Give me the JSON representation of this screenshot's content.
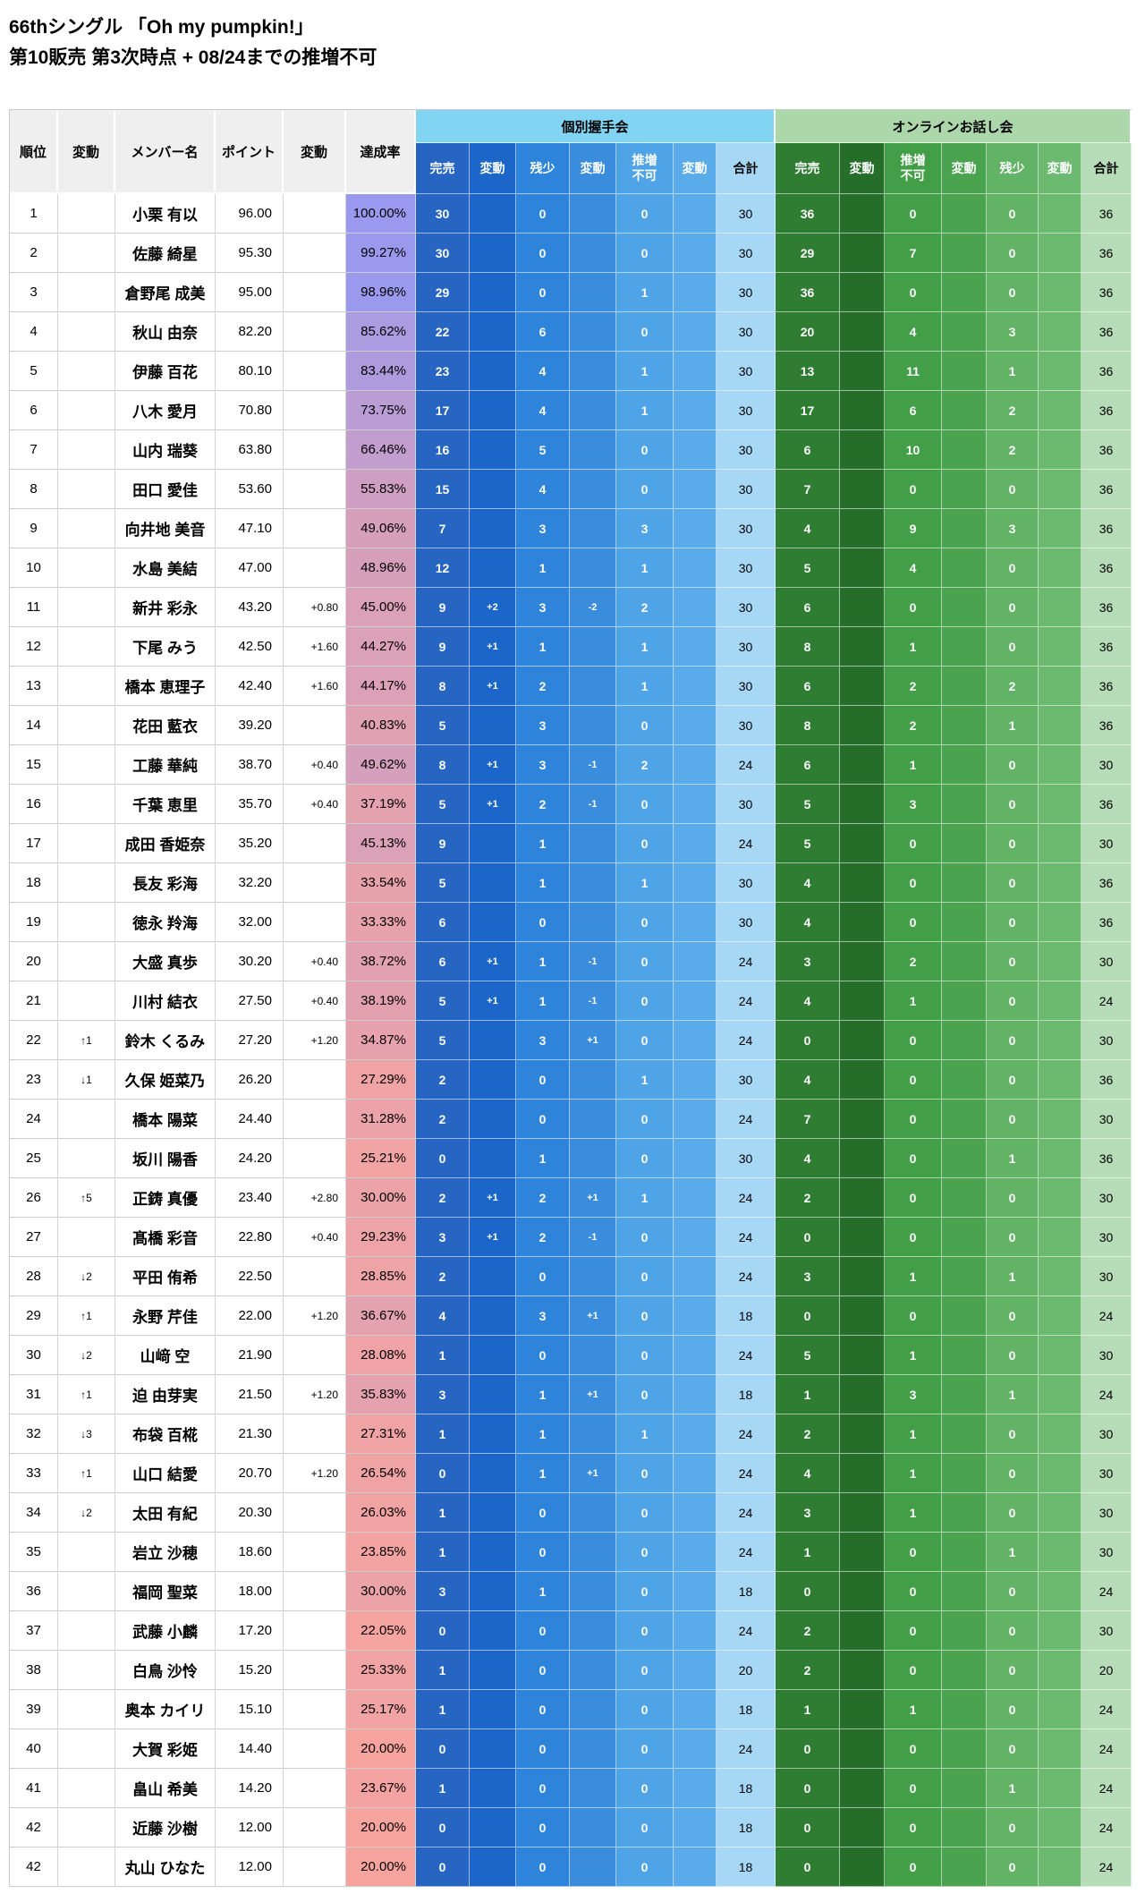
{
  "title": {
    "line1": "66thシングル 「Oh my pumpkin!」",
    "line2": "第10販売 第3次時点 + 08/24までの推増不可"
  },
  "colors": {
    "handshake_group_header": "#82d4f3",
    "online_group_header": "#acd7ab",
    "rate_scale_low_value": 20,
    "rate_scale_low_color": "#f8a49e",
    "rate_scale_high_value": 100,
    "rate_scale_high_color": "#9a99ef"
  },
  "table": {
    "left_headers": [
      "順位",
      "変動",
      "メンバー名",
      "ポイント",
      "変動",
      "達成率"
    ],
    "groups": [
      {
        "label": "個別握手会",
        "columns": [
          "完売",
          "変動",
          "残少",
          "変動",
          "推増\n不可",
          "変動",
          "合計"
        ]
      },
      {
        "label": "オンラインお話し会",
        "columns": [
          "完売",
          "変動",
          "推増\n不可",
          "変動",
          "残少",
          "変動",
          "合計"
        ]
      }
    ],
    "rows": [
      {
        "rank": "1",
        "move": "",
        "name": "小栗 有以",
        "points": "96.00",
        "pt_change": "",
        "rate": "100.00%",
        "hs": [
          "30",
          "",
          "0",
          "",
          "0",
          "",
          "30"
        ],
        "online": [
          "36",
          "",
          "0",
          "",
          "0",
          "",
          "36"
        ]
      },
      {
        "rank": "2",
        "move": "",
        "name": "佐藤 綺星",
        "points": "95.30",
        "pt_change": "",
        "rate": "99.27%",
        "hs": [
          "30",
          "",
          "0",
          "",
          "0",
          "",
          "30"
        ],
        "online": [
          "29",
          "",
          "7",
          "",
          "0",
          "",
          "36"
        ]
      },
      {
        "rank": "3",
        "move": "",
        "name": "倉野尾 成美",
        "points": "95.00",
        "pt_change": "",
        "rate": "98.96%",
        "hs": [
          "29",
          "",
          "0",
          "",
          "1",
          "",
          "30"
        ],
        "online": [
          "36",
          "",
          "0",
          "",
          "0",
          "",
          "36"
        ]
      },
      {
        "rank": "4",
        "move": "",
        "name": "秋山 由奈",
        "points": "82.20",
        "pt_change": "",
        "rate": "85.62%",
        "hs": [
          "22",
          "",
          "6",
          "",
          "0",
          "",
          "30"
        ],
        "online": [
          "20",
          "",
          "4",
          "",
          "3",
          "",
          "36"
        ]
      },
      {
        "rank": "5",
        "move": "",
        "name": "伊藤 百花",
        "points": "80.10",
        "pt_change": "",
        "rate": "83.44%",
        "hs": [
          "23",
          "",
          "4",
          "",
          "1",
          "",
          "30"
        ],
        "online": [
          "13",
          "",
          "11",
          "",
          "1",
          "",
          "36"
        ]
      },
      {
        "rank": "6",
        "move": "",
        "name": "八木 愛月",
        "points": "70.80",
        "pt_change": "",
        "rate": "73.75%",
        "hs": [
          "17",
          "",
          "4",
          "",
          "1",
          "",
          "30"
        ],
        "online": [
          "17",
          "",
          "6",
          "",
          "2",
          "",
          "36"
        ]
      },
      {
        "rank": "7",
        "move": "",
        "name": "山内 瑞葵",
        "points": "63.80",
        "pt_change": "",
        "rate": "66.46%",
        "hs": [
          "16",
          "",
          "5",
          "",
          "0",
          "",
          "30"
        ],
        "online": [
          "6",
          "",
          "10",
          "",
          "2",
          "",
          "36"
        ]
      },
      {
        "rank": "8",
        "move": "",
        "name": "田口 愛佳",
        "points": "53.60",
        "pt_change": "",
        "rate": "55.83%",
        "hs": [
          "15",
          "",
          "4",
          "",
          "0",
          "",
          "30"
        ],
        "online": [
          "7",
          "",
          "0",
          "",
          "0",
          "",
          "36"
        ]
      },
      {
        "rank": "9",
        "move": "",
        "name": "向井地 美音",
        "points": "47.10",
        "pt_change": "",
        "rate": "49.06%",
        "hs": [
          "7",
          "",
          "3",
          "",
          "3",
          "",
          "30"
        ],
        "online": [
          "4",
          "",
          "9",
          "",
          "3",
          "",
          "36"
        ]
      },
      {
        "rank": "10",
        "move": "",
        "name": "水島 美結",
        "points": "47.00",
        "pt_change": "",
        "rate": "48.96%",
        "hs": [
          "12",
          "",
          "1",
          "",
          "1",
          "",
          "30"
        ],
        "online": [
          "5",
          "",
          "4",
          "",
          "0",
          "",
          "36"
        ]
      },
      {
        "rank": "11",
        "move": "",
        "name": "新井 彩永",
        "points": "43.20",
        "pt_change": "+0.80",
        "rate": "45.00%",
        "hs": [
          "9",
          "+2",
          "3",
          "-2",
          "2",
          "",
          "30"
        ],
        "online": [
          "6",
          "",
          "0",
          "",
          "0",
          "",
          "36"
        ]
      },
      {
        "rank": "12",
        "move": "",
        "name": "下尾 みう",
        "points": "42.50",
        "pt_change": "+1.60",
        "rate": "44.27%",
        "hs": [
          "9",
          "+1",
          "1",
          "",
          "1",
          "",
          "30"
        ],
        "online": [
          "8",
          "",
          "1",
          "",
          "0",
          "",
          "36"
        ]
      },
      {
        "rank": "13",
        "move": "",
        "name": "橋本 恵理子",
        "points": "42.40",
        "pt_change": "+1.60",
        "rate": "44.17%",
        "hs": [
          "8",
          "+1",
          "2",
          "",
          "1",
          "",
          "30"
        ],
        "online": [
          "6",
          "",
          "2",
          "",
          "2",
          "",
          "36"
        ]
      },
      {
        "rank": "14",
        "move": "",
        "name": "花田 藍衣",
        "points": "39.20",
        "pt_change": "",
        "rate": "40.83%",
        "hs": [
          "5",
          "",
          "3",
          "",
          "0",
          "",
          "30"
        ],
        "online": [
          "8",
          "",
          "2",
          "",
          "1",
          "",
          "36"
        ]
      },
      {
        "rank": "15",
        "move": "",
        "name": "工藤 華純",
        "points": "38.70",
        "pt_change": "+0.40",
        "rate": "49.62%",
        "hs": [
          "8",
          "+1",
          "3",
          "-1",
          "2",
          "",
          "24"
        ],
        "online": [
          "6",
          "",
          "1",
          "",
          "0",
          "",
          "30"
        ]
      },
      {
        "rank": "16",
        "move": "",
        "name": "千葉 恵里",
        "points": "35.70",
        "pt_change": "+0.40",
        "rate": "37.19%",
        "hs": [
          "5",
          "+1",
          "2",
          "-1",
          "0",
          "",
          "30"
        ],
        "online": [
          "5",
          "",
          "3",
          "",
          "0",
          "",
          "36"
        ]
      },
      {
        "rank": "17",
        "move": "",
        "name": "成田 香姫奈",
        "points": "35.20",
        "pt_change": "",
        "rate": "45.13%",
        "hs": [
          "9",
          "",
          "1",
          "",
          "0",
          "",
          "24"
        ],
        "online": [
          "5",
          "",
          "0",
          "",
          "0",
          "",
          "30"
        ]
      },
      {
        "rank": "18",
        "move": "",
        "name": "長友 彩海",
        "points": "32.20",
        "pt_change": "",
        "rate": "33.54%",
        "hs": [
          "5",
          "",
          "1",
          "",
          "1",
          "",
          "30"
        ],
        "online": [
          "4",
          "",
          "0",
          "",
          "0",
          "",
          "36"
        ]
      },
      {
        "rank": "19",
        "move": "",
        "name": "徳永 羚海",
        "points": "32.00",
        "pt_change": "",
        "rate": "33.33%",
        "hs": [
          "6",
          "",
          "0",
          "",
          "0",
          "",
          "30"
        ],
        "online": [
          "4",
          "",
          "0",
          "",
          "0",
          "",
          "36"
        ]
      },
      {
        "rank": "20",
        "move": "",
        "name": "大盛 真歩",
        "points": "30.20",
        "pt_change": "+0.40",
        "rate": "38.72%",
        "hs": [
          "6",
          "+1",
          "1",
          "-1",
          "0",
          "",
          "24"
        ],
        "online": [
          "3",
          "",
          "2",
          "",
          "0",
          "",
          "30"
        ]
      },
      {
        "rank": "21",
        "move": "",
        "name": "川村 結衣",
        "points": "27.50",
        "pt_change": "+0.40",
        "rate": "38.19%",
        "hs": [
          "5",
          "+1",
          "1",
          "-1",
          "0",
          "",
          "24"
        ],
        "online": [
          "4",
          "",
          "1",
          "",
          "0",
          "",
          "24"
        ]
      },
      {
        "rank": "22",
        "move": "↑1",
        "name": "鈴木 くるみ",
        "points": "27.20",
        "pt_change": "+1.20",
        "rate": "34.87%",
        "hs": [
          "5",
          "",
          "3",
          "+1",
          "0",
          "",
          "24"
        ],
        "online": [
          "0",
          "",
          "0",
          "",
          "0",
          "",
          "30"
        ]
      },
      {
        "rank": "23",
        "move": "↓1",
        "name": "久保 姫菜乃",
        "points": "26.20",
        "pt_change": "",
        "rate": "27.29%",
        "hs": [
          "2",
          "",
          "0",
          "",
          "1",
          "",
          "30"
        ],
        "online": [
          "4",
          "",
          "0",
          "",
          "0",
          "",
          "36"
        ]
      },
      {
        "rank": "24",
        "move": "",
        "name": "橋本 陽菜",
        "points": "24.40",
        "pt_change": "",
        "rate": "31.28%",
        "hs": [
          "2",
          "",
          "0",
          "",
          "0",
          "",
          "24"
        ],
        "online": [
          "7",
          "",
          "0",
          "",
          "0",
          "",
          "30"
        ]
      },
      {
        "rank": "25",
        "move": "",
        "name": "坂川 陽香",
        "points": "24.20",
        "pt_change": "",
        "rate": "25.21%",
        "hs": [
          "0",
          "",
          "1",
          "",
          "0",
          "",
          "30"
        ],
        "online": [
          "4",
          "",
          "0",
          "",
          "1",
          "",
          "36"
        ]
      },
      {
        "rank": "26",
        "move": "↑5",
        "name": "正鋳 真優",
        "points": "23.40",
        "pt_change": "+2.80",
        "rate": "30.00%",
        "hs": [
          "2",
          "+1",
          "2",
          "+1",
          "1",
          "",
          "24"
        ],
        "online": [
          "2",
          "",
          "0",
          "",
          "0",
          "",
          "30"
        ]
      },
      {
        "rank": "27",
        "move": "",
        "name": "髙橋 彩音",
        "points": "22.80",
        "pt_change": "+0.40",
        "rate": "29.23%",
        "hs": [
          "3",
          "+1",
          "2",
          "-1",
          "0",
          "",
          "24"
        ],
        "online": [
          "0",
          "",
          "0",
          "",
          "0",
          "",
          "30"
        ]
      },
      {
        "rank": "28",
        "move": "↓2",
        "name": "平田 侑希",
        "points": "22.50",
        "pt_change": "",
        "rate": "28.85%",
        "hs": [
          "2",
          "",
          "0",
          "",
          "0",
          "",
          "24"
        ],
        "online": [
          "3",
          "",
          "1",
          "",
          "1",
          "",
          "30"
        ]
      },
      {
        "rank": "29",
        "move": "↑1",
        "name": "永野 芹佳",
        "points": "22.00",
        "pt_change": "+1.20",
        "rate": "36.67%",
        "hs": [
          "4",
          "",
          "3",
          "+1",
          "0",
          "",
          "18"
        ],
        "online": [
          "0",
          "",
          "0",
          "",
          "0",
          "",
          "24"
        ]
      },
      {
        "rank": "30",
        "move": "↓2",
        "name": "山﨑 空",
        "points": "21.90",
        "pt_change": "",
        "rate": "28.08%",
        "hs": [
          "1",
          "",
          "0",
          "",
          "0",
          "",
          "24"
        ],
        "online": [
          "5",
          "",
          "1",
          "",
          "0",
          "",
          "30"
        ]
      },
      {
        "rank": "31",
        "move": "↑1",
        "name": "迫 由芽実",
        "points": "21.50",
        "pt_change": "+1.20",
        "rate": "35.83%",
        "hs": [
          "3",
          "",
          "1",
          "+1",
          "0",
          "",
          "18"
        ],
        "online": [
          "1",
          "",
          "3",
          "",
          "1",
          "",
          "24"
        ]
      },
      {
        "rank": "32",
        "move": "↓3",
        "name": "布袋 百椛",
        "points": "21.30",
        "pt_change": "",
        "rate": "27.31%",
        "hs": [
          "1",
          "",
          "1",
          "",
          "1",
          "",
          "24"
        ],
        "online": [
          "2",
          "",
          "1",
          "",
          "0",
          "",
          "30"
        ]
      },
      {
        "rank": "33",
        "move": "↑1",
        "name": "山口 結愛",
        "points": "20.70",
        "pt_change": "+1.20",
        "rate": "26.54%",
        "hs": [
          "0",
          "",
          "1",
          "+1",
          "0",
          "",
          "24"
        ],
        "online": [
          "4",
          "",
          "1",
          "",
          "0",
          "",
          "30"
        ]
      },
      {
        "rank": "34",
        "move": "↓2",
        "name": "太田 有紀",
        "points": "20.30",
        "pt_change": "",
        "rate": "26.03%",
        "hs": [
          "1",
          "",
          "0",
          "",
          "0",
          "",
          "24"
        ],
        "online": [
          "3",
          "",
          "1",
          "",
          "0",
          "",
          "30"
        ]
      },
      {
        "rank": "35",
        "move": "",
        "name": "岩立 沙穂",
        "points": "18.60",
        "pt_change": "",
        "rate": "23.85%",
        "hs": [
          "1",
          "",
          "0",
          "",
          "0",
          "",
          "24"
        ],
        "online": [
          "1",
          "",
          "0",
          "",
          "1",
          "",
          "30"
        ]
      },
      {
        "rank": "36",
        "move": "",
        "name": "福岡 聖菜",
        "points": "18.00",
        "pt_change": "",
        "rate": "30.00%",
        "hs": [
          "3",
          "",
          "1",
          "",
          "0",
          "",
          "18"
        ],
        "online": [
          "0",
          "",
          "0",
          "",
          "0",
          "",
          "24"
        ]
      },
      {
        "rank": "37",
        "move": "",
        "name": "武藤 小麟",
        "points": "17.20",
        "pt_change": "",
        "rate": "22.05%",
        "hs": [
          "0",
          "",
          "0",
          "",
          "0",
          "",
          "24"
        ],
        "online": [
          "2",
          "",
          "0",
          "",
          "0",
          "",
          "30"
        ]
      },
      {
        "rank": "38",
        "move": "",
        "name": "白鳥 沙怜",
        "points": "15.20",
        "pt_change": "",
        "rate": "25.33%",
        "hs": [
          "1",
          "",
          "0",
          "",
          "0",
          "",
          "20"
        ],
        "online": [
          "2",
          "",
          "0",
          "",
          "0",
          "",
          "20"
        ]
      },
      {
        "rank": "39",
        "move": "",
        "name": "奥本 カイリ",
        "points": "15.10",
        "pt_change": "",
        "rate": "25.17%",
        "hs": [
          "1",
          "",
          "0",
          "",
          "0",
          "",
          "18"
        ],
        "online": [
          "1",
          "",
          "1",
          "",
          "0",
          "",
          "24"
        ]
      },
      {
        "rank": "40",
        "move": "",
        "name": "大賀 彩姫",
        "points": "14.40",
        "pt_change": "",
        "rate": "20.00%",
        "hs": [
          "0",
          "",
          "0",
          "",
          "0",
          "",
          "24"
        ],
        "online": [
          "0",
          "",
          "0",
          "",
          "0",
          "",
          "24"
        ]
      },
      {
        "rank": "41",
        "move": "",
        "name": "畠山 希美",
        "points": "14.20",
        "pt_change": "",
        "rate": "23.67%",
        "hs": [
          "1",
          "",
          "0",
          "",
          "0",
          "",
          "18"
        ],
        "online": [
          "0",
          "",
          "0",
          "",
          "1",
          "",
          "24"
        ]
      },
      {
        "rank": "42",
        "move": "",
        "name": "近藤 沙樹",
        "points": "12.00",
        "pt_change": "",
        "rate": "20.00%",
        "hs": [
          "0",
          "",
          "0",
          "",
          "0",
          "",
          "18"
        ],
        "online": [
          "0",
          "",
          "0",
          "",
          "0",
          "",
          "24"
        ]
      },
      {
        "rank": "42",
        "move": "",
        "name": "丸山 ひなた",
        "points": "12.00",
        "pt_change": "",
        "rate": "20.00%",
        "hs": [
          "0",
          "",
          "0",
          "",
          "0",
          "",
          "18"
        ],
        "online": [
          "0",
          "",
          "0",
          "",
          "0",
          "",
          "24"
        ]
      }
    ]
  }
}
